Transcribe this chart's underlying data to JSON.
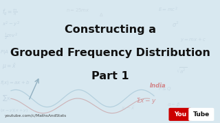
{
  "title_line1": "Constructing a",
  "title_line2": "Grouped Frequency Distribution",
  "title_line3": "Part 1",
  "title_color": "#111111",
  "bg_color": "#d8e8f0",
  "youtube_text": "youtube.com/c/MathsAndStats",
  "youtube_color": "#444444",
  "youtube_logo_you": "You",
  "youtube_logo_tube": "Tube",
  "youtube_logo_bg": "#cc0000",
  "youtube_logo_text_color": "#ffffff",
  "title_fontsize": 11.5
}
